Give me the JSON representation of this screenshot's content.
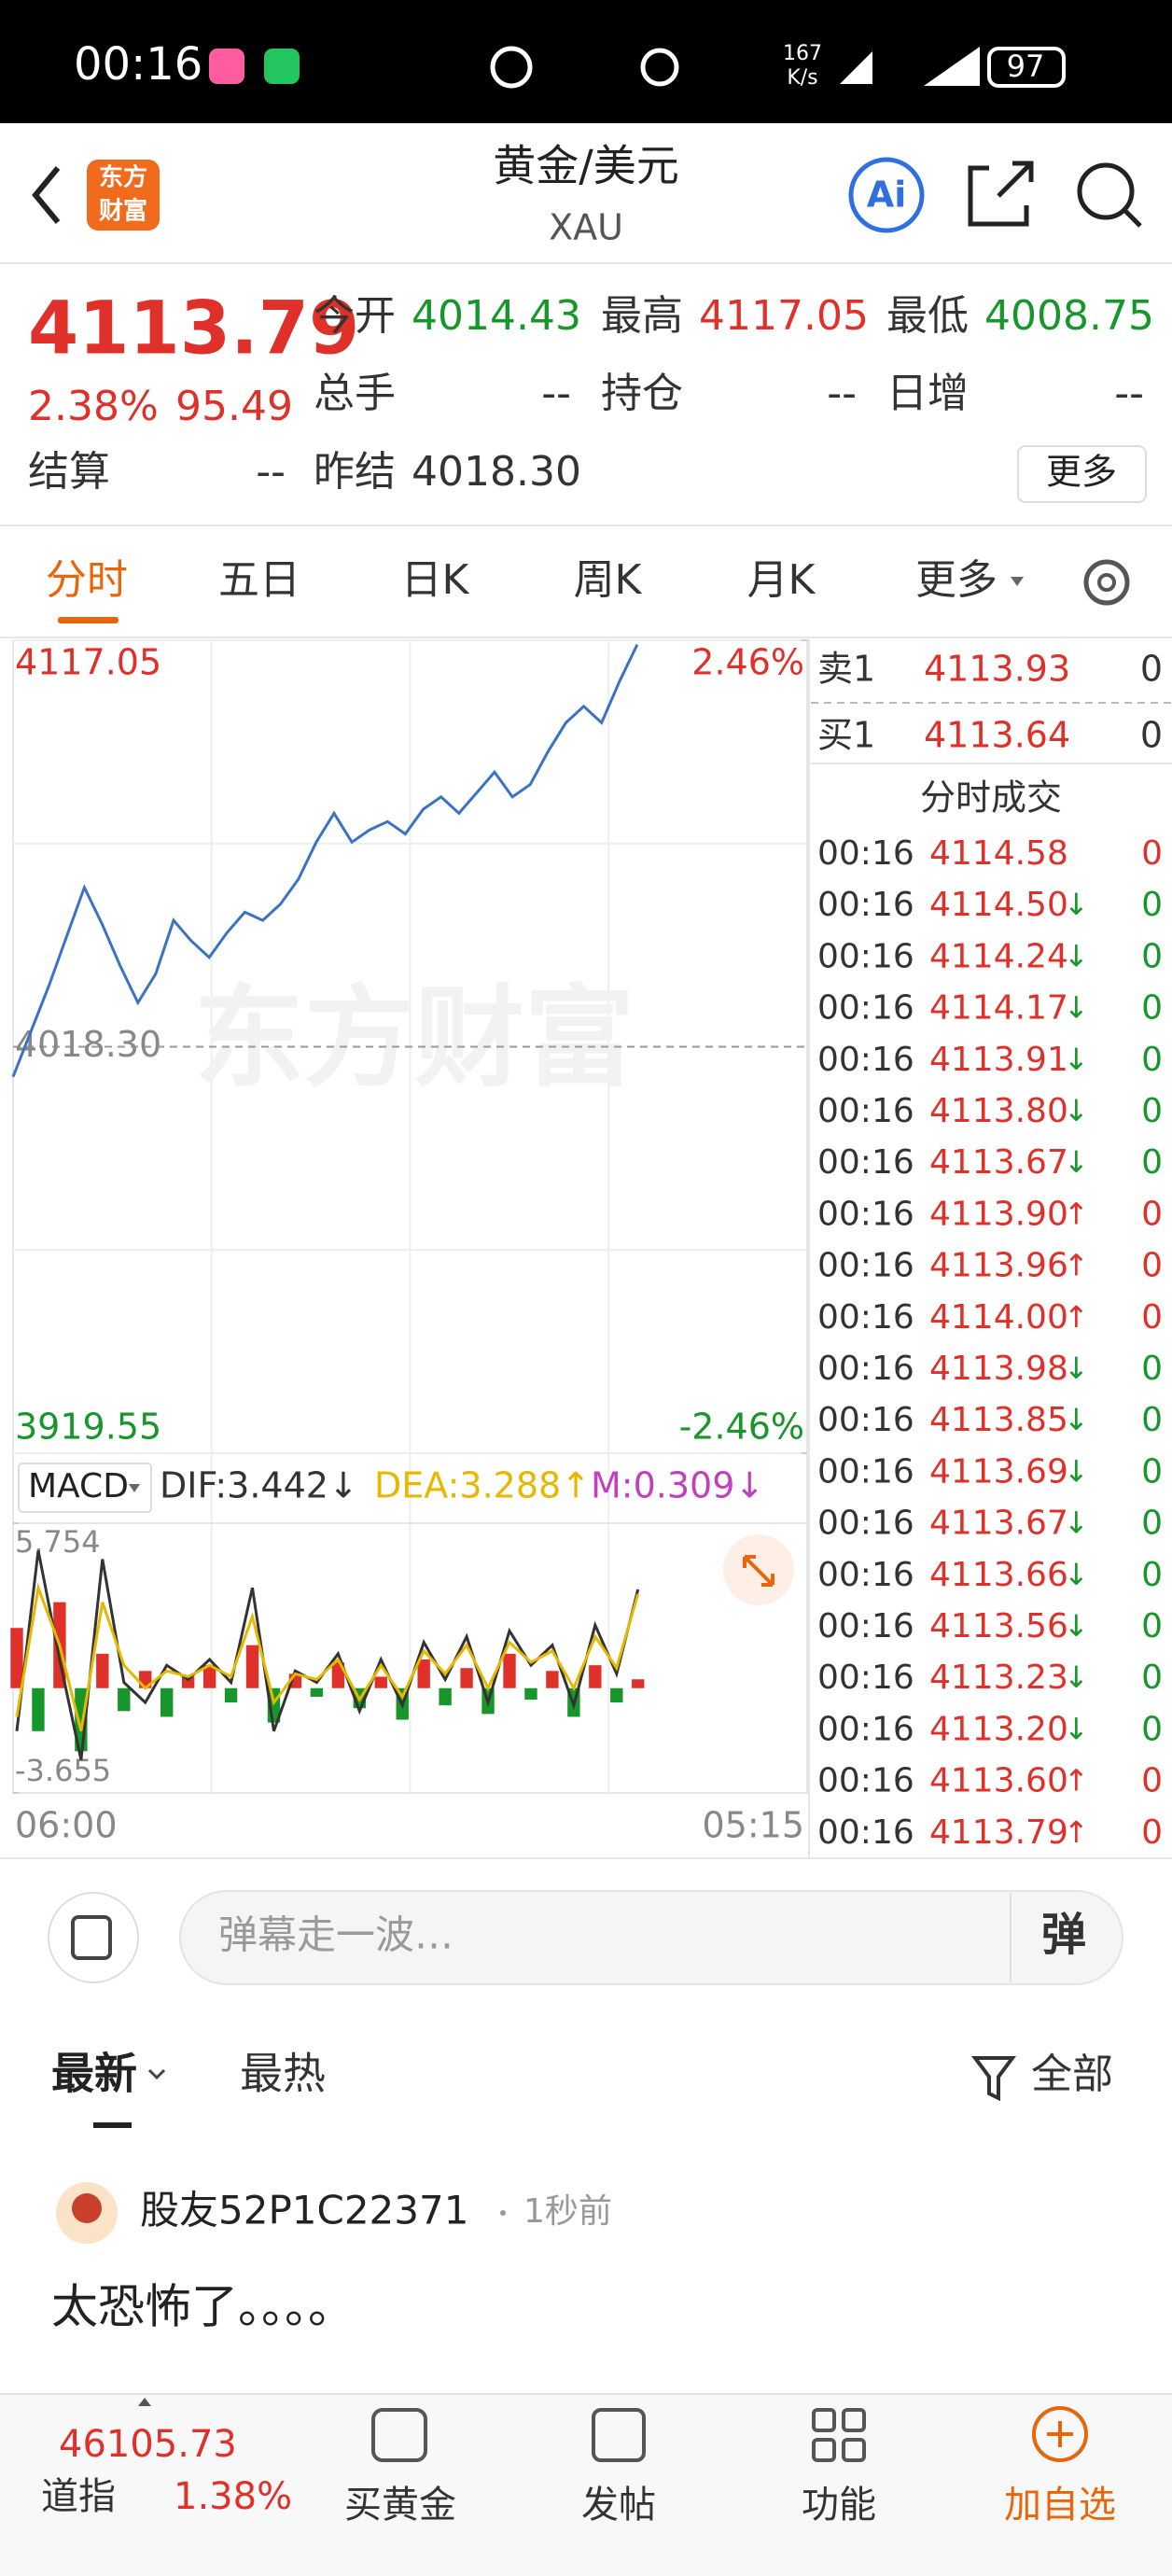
{
  "status_bar": {
    "time": "00:16",
    "speed": "167",
    "speed_unit": "K/s",
    "battery": "97"
  },
  "header": {
    "logo": [
      "东方",
      "财富"
    ],
    "title": "黄金/美元",
    "subtitle": "XAU",
    "ai": "Ai"
  },
  "quote": {
    "price": "4113.79",
    "change_pct": "2.38%",
    "change": "95.49",
    "fields": [
      {
        "label": "今开",
        "value": "4014.43"
      },
      {
        "label": "最高",
        "value": "4117.05"
      },
      {
        "label": "最低",
        "value": "4008.75"
      },
      {
        "label": "总手",
        "value": "--"
      },
      {
        "label": "持仓",
        "value": "--"
      },
      {
        "label": "日增",
        "value": "--"
      },
      {
        "label": "结算",
        "value": "--"
      },
      {
        "label": "昨结",
        "value": "4018.30"
      }
    ],
    "more": "更多"
  },
  "tabs": [
    "分时",
    "五日",
    "日K",
    "周K",
    "月K",
    "更多"
  ],
  "price_chart": {
    "type": "line",
    "color": "#3b73c4",
    "up_color": "#e0302a",
    "down_color": "#17962c",
    "values": [
      4011,
      4022,
      4033,
      4045,
      4057,
      4048,
      4038,
      4029,
      4036,
      4049,
      4044,
      4040,
      4046,
      4051,
      4049,
      4053,
      4059,
      4068,
      4075,
      4068,
      4071,
      4073,
      4070,
      4076,
      4079,
      4075,
      4080,
      4085,
      4079,
      4082,
      4090,
      4097,
      4101,
      4097,
      4107,
      4116
    ],
    "ylim": [
      3919.55,
      4117.05
    ],
    "yticks": [
      3919.55,
      {
        "value": 4018.3,
        "label": "4018.30"
      },
      4117.05
    ],
    "y2lim": [
      -2.46,
      2.46
    ],
    "y2ticks": [
      {
        "value": -2.46,
        "label": "-2.46%"
      },
      {
        "value": 2.46,
        "label": "2.46%"
      }
    ],
    "x_labels": [
      "06:00",
      "05:15"
    ],
    "watermark": "东方财富"
  },
  "macd": {
    "type": "macd",
    "label": "MACD",
    "dif_label": "DIF:3.442↓",
    "dea_label": "DEA:3.288↑",
    "m_label": "M:0.309↓",
    "ylim": [
      -3.655,
      5.754
    ],
    "yticks": [
      -3.655,
      5.754
    ],
    "dif": {
      "color": "#333333",
      "values": [
        -1.5,
        4.8,
        1.0,
        -2.5,
        4.5,
        0.2,
        -0.5,
        0.8,
        0.3,
        1.0,
        0.2,
        3.5,
        -1.5,
        0.6,
        0.2,
        1.2,
        -0.8,
        1.0,
        -0.6,
        1.6,
        0.3,
        1.8,
        -0.5,
        2.0,
        0.8,
        1.5,
        -0.6,
        2.2,
        0.5,
        3.442
      ]
    },
    "dea": {
      "color": "#e6b800",
      "values": [
        -1.0,
        3.5,
        1.5,
        -1.5,
        3.0,
        0.8,
        0.0,
        0.6,
        0.4,
        0.8,
        0.4,
        2.5,
        -0.5,
        0.5,
        0.3,
        1.0,
        -0.4,
        0.8,
        -0.3,
        1.3,
        0.5,
        1.5,
        0.0,
        1.6,
        0.9,
        1.3,
        0.0,
        1.8,
        0.7,
        3.288
      ]
    },
    "m": {
      "color": "#c040c0",
      "values": [
        2.1,
        -1.5,
        3.0,
        -2.2,
        1.2,
        -0.8,
        0.6,
        -1.0,
        0.4,
        0.8,
        -0.5,
        1.5,
        -1.2,
        0.5,
        -0.3,
        0.9,
        -0.7,
        0.4,
        -1.1,
        1.0,
        -0.6,
        0.7,
        -0.9,
        1.2,
        -0.4,
        0.6,
        -1.0,
        0.8,
        -0.5,
        0.309
      ]
    }
  },
  "order_book": {
    "asks": [
      {
        "label": "卖1",
        "price": "4113.93",
        "volume": "0"
      }
    ],
    "bids": [
      {
        "label": "买1",
        "price": "4113.64",
        "volume": "0"
      }
    ]
  },
  "trades": {
    "title": "分时成交",
    "rows": [
      {
        "time": "00:16",
        "price": "4114.58",
        "volume": "0"
      },
      {
        "time": "00:16",
        "price": "4114.50",
        "arrow": "↓",
        "volume": "0"
      },
      {
        "time": "00:16",
        "price": "4114.24",
        "arrow": "↓",
        "volume": "0"
      },
      {
        "time": "00:16",
        "price": "4114.17",
        "arrow": "↓",
        "volume": "0"
      },
      {
        "time": "00:16",
        "price": "4113.91",
        "arrow": "↓",
        "volume": "0"
      },
      {
        "time": "00:16",
        "price": "4113.80",
        "arrow": "↓",
        "volume": "0"
      },
      {
        "time": "00:16",
        "price": "4113.67",
        "arrow": "↓",
        "volume": "0"
      },
      {
        "time": "00:16",
        "price": "4113.90",
        "arrow": "↑",
        "volume": "0"
      },
      {
        "time": "00:16",
        "price": "4113.96",
        "arrow": "↑",
        "volume": "0"
      },
      {
        "time": "00:16",
        "price": "4114.00",
        "arrow": "↑",
        "volume": "0"
      },
      {
        "time": "00:16",
        "price": "4113.98",
        "arrow": "↓",
        "volume": "0"
      },
      {
        "time": "00:16",
        "price": "4113.85",
        "arrow": "↓",
        "volume": "0"
      },
      {
        "time": "00:16",
        "price": "4113.69",
        "arrow": "↓",
        "volume": "0"
      },
      {
        "time": "00:16",
        "price": "4113.67",
        "arrow": "↓",
        "volume": "0"
      },
      {
        "time": "00:16",
        "price": "4113.66",
        "arrow": "↓",
        "volume": "0"
      },
      {
        "time": "00:16",
        "price": "4113.56",
        "arrow": "↓",
        "volume": "0"
      },
      {
        "time": "00:16",
        "price": "4113.23",
        "arrow": "↓",
        "volume": "0"
      },
      {
        "time": "00:16",
        "price": "4113.20",
        "arrow": "↓",
        "volume": "0"
      },
      {
        "time": "00:16",
        "price": "4113.60",
        "arrow": "↑",
        "volume": "0"
      },
      {
        "time": "00:16",
        "price": "4113.79",
        "arrow": "↑",
        "volume": "0"
      }
    ]
  },
  "comment_bar": {
    "placeholder": "弹幕走一波…",
    "button": "弹"
  },
  "feed": {
    "tabs": [
      "最新",
      "最热"
    ],
    "filter": "全部",
    "posts": [
      {
        "user": "股友52P1C22371",
        "time": "1秒前",
        "text": "太恐怖了。。。。"
      }
    ]
  },
  "bottom_nav": {
    "index_value": "46105.73",
    "index_name": "道指",
    "index_change": "1.38%",
    "items": [
      "买黄金",
      "发帖",
      "功能",
      "加自选"
    ]
  }
}
